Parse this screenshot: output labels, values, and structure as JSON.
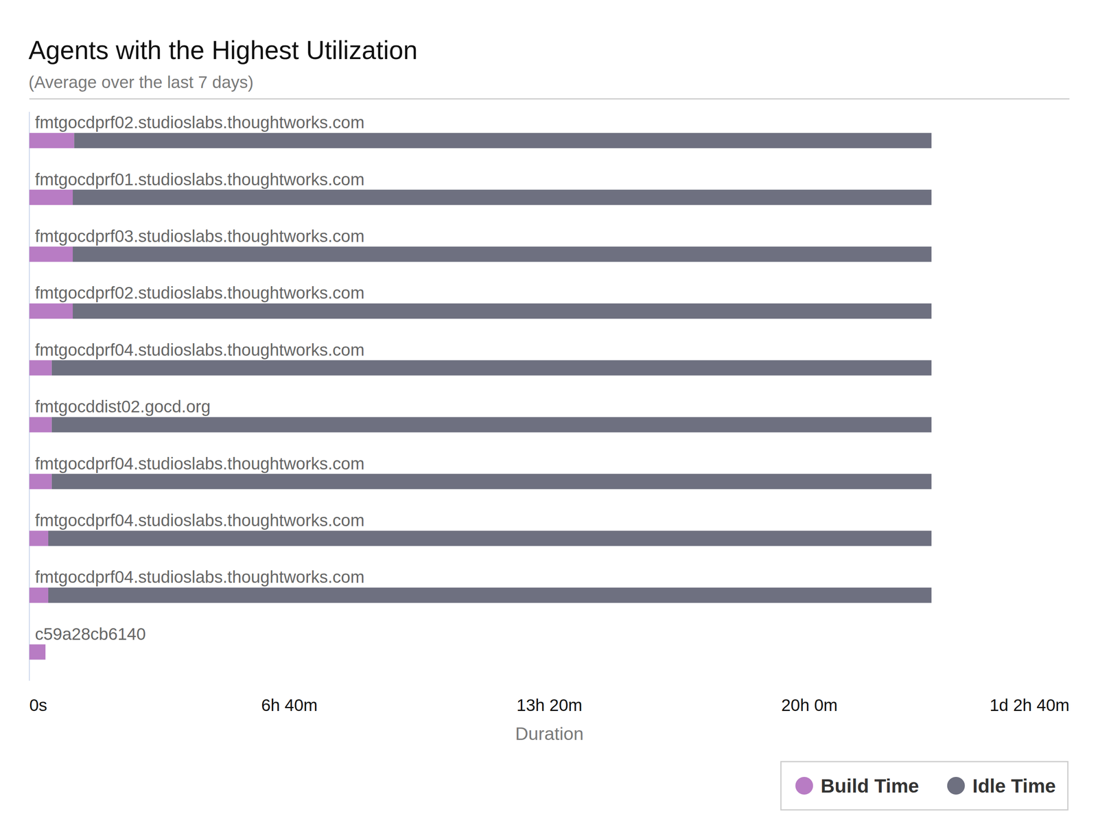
{
  "chart_data": {
    "type": "bar",
    "title": "Agents with the Highest Utilization",
    "subtitle": "(Average over the last 7 days)",
    "orientation": "horizontal",
    "stacked": true,
    "grid": false,
    "legend": "bottom right",
    "xlabel": "Duration",
    "categories": [
      "fmtgocdprf02.studioslabs.thoughtworks.com",
      "fmtgocdprf01.studioslabs.thoughtworks.com",
      "fmtgocdprf03.studioslabs.thoughtworks.com",
      "fmtgocdprf02.studioslabs.thoughtworks.com",
      "fmtgocdprf04.studioslabs.thoughtworks.com",
      "fmtgocddist02.gocd.org",
      "fmtgocdprf04.studioslabs.thoughtworks.com",
      "fmtgocdprf04.studioslabs.thoughtworks.com",
      "fmtgocdprf04.studioslabs.thoughtworks.com",
      "c59a28cb6140"
    ],
    "series": [
      {
        "name": "Build Time",
        "color": "#b87cc4",
        "values": [
          4137,
          4008,
          4008,
          4008,
          2069,
          2069,
          2069,
          1745,
          1745,
          1487
        ]
      },
      {
        "name": "Idle Time",
        "color": "#6e7080",
        "values": [
          79128,
          79257,
          79257,
          79257,
          81196,
          81196,
          81196,
          81520,
          81520,
          null
        ]
      }
    ],
    "xlim": [
      0,
      96000
    ],
    "xticks": [
      {
        "value": 0,
        "label": "0s"
      },
      {
        "value": 24000,
        "label": "6h 40m"
      },
      {
        "value": 48000,
        "label": "13h 20m"
      },
      {
        "value": 72000,
        "label": "20h 0m"
      },
      {
        "value": 96000,
        "label": "1d 2h 40m"
      }
    ]
  }
}
